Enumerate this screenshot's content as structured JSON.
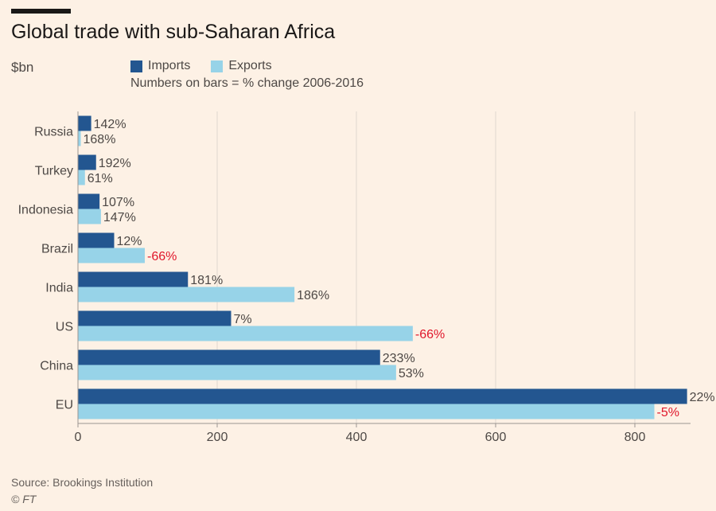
{
  "header": {
    "title": "Global trade with sub-Saharan Africa",
    "unit": "$bn"
  },
  "legend": {
    "imports_label": "Imports",
    "exports_label": "Exports",
    "note": "Numbers on bars = % change 2006-2016"
  },
  "footer": {
    "source": "Source: Brookings Institution",
    "copyright": "© FT"
  },
  "colors": {
    "imports": "#235690",
    "exports": "#97d3e8",
    "negative_label": "#e0172b",
    "label": "#4d4845",
    "gridline": "#e0d8d0",
    "axis": "#9b9591"
  },
  "chart_data": {
    "type": "bar",
    "orientation": "horizontal",
    "title": "Global trade with sub-Saharan Africa",
    "ylabel": "$bn",
    "xlim": [
      0,
      880
    ],
    "xticks": [
      0,
      200,
      400,
      600,
      800
    ],
    "grid": true,
    "legend_position": "top-left",
    "categories": [
      "Russia",
      "Turkey",
      "Indonesia",
      "Brazil",
      "India",
      "US",
      "China",
      "EU"
    ],
    "series": [
      {
        "name": "Imports",
        "values": [
          19,
          26,
          31,
          52,
          158,
          220,
          434,
          875
        ],
        "labels": [
          "142%",
          "192%",
          "107%",
          "12%",
          "181%",
          "7%",
          "233%",
          "22%"
        ]
      },
      {
        "name": "Exports",
        "values": [
          4,
          10,
          33,
          96,
          311,
          481,
          457,
          828
        ],
        "labels": [
          "168%",
          "61%",
          "147%",
          "-66%",
          "186%",
          "-66%",
          "53%",
          "-5%"
        ]
      }
    ]
  }
}
